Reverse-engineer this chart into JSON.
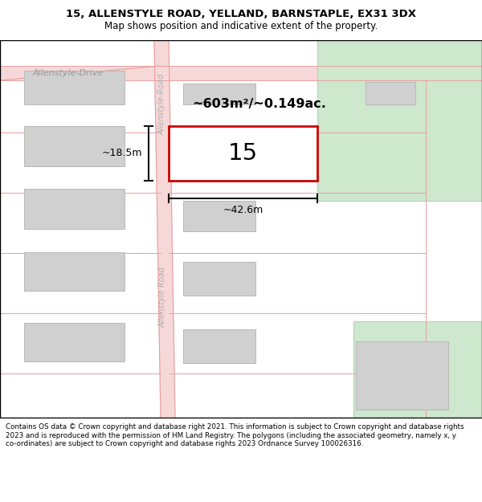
{
  "title_line1": "15, ALLENSTYLE ROAD, YELLAND, BARNSTAPLE, EX31 3DX",
  "title_line2": "Map shows position and indicative extent of the property.",
  "footer_text": "Contains OS data © Crown copyright and database right 2021. This information is subject to Crown copyright and database rights 2023 and is reproduced with the permission of HM Land Registry. The polygons (including the associated geometry, namely x, y co-ordinates) are subject to Crown copyright and database rights 2023 Ordnance Survey 100026316.",
  "map_bg": "#ffffff",
  "road_fill": "#f7d8d8",
  "road_line": "#e8a0a0",
  "building_fill": "#d0d0d0",
  "building_edge": "#b8b8b8",
  "green_fill": "#cde8cd",
  "green_edge": "#aacaaa",
  "prop_edge": "#cc0000",
  "prop_fill": "#ffffff",
  "dim_color": "#111111",
  "area_label": "~603m²/~0.149ac.",
  "dim_h": "~18.5m",
  "dim_w": "~42.6m",
  "label_drive": "Allenstyle-Drive",
  "label_road_upper": "Allenstyle-Road",
  "label_road_lower": "Allenstyle Road",
  "title_fs": 9.5,
  "subtitle_fs": 8.5,
  "footer_fs": 6.3
}
